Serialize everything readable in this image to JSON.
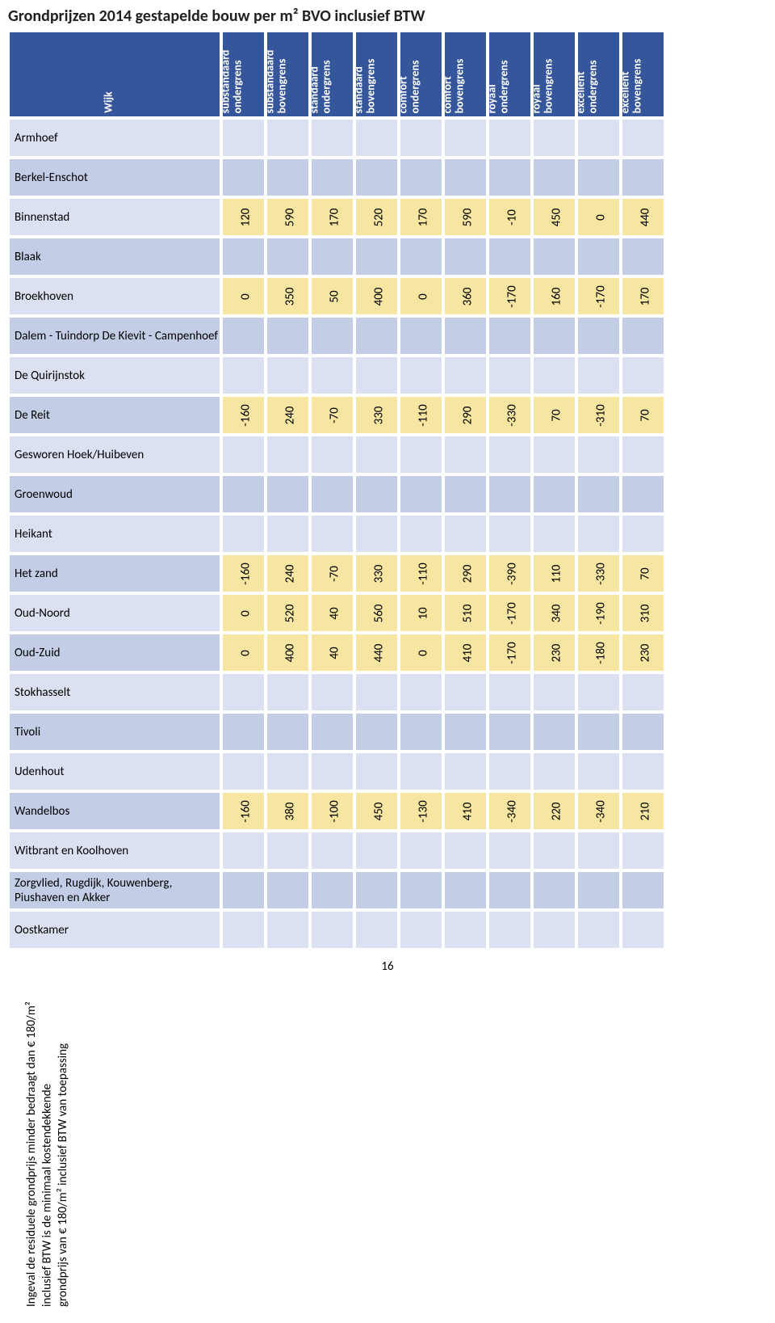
{
  "meta": {
    "title": "Grondprijzen 2014 gestapelde bouw per m² BVO inclusief BTW",
    "page_number": "16",
    "footnote_line1": "Ingeval de residuele grondprijs minder bedraagt dan € 180/m² inclusief BTW is de minimaal kostendekkende",
    "footnote_line2": "grondprijs van € 180/m² inclusief BTW van toepassing"
  },
  "headers": {
    "wijk": "Wijk",
    "cols": [
      {
        "l1": "substandaard",
        "l2": "ondergrens"
      },
      {
        "l1": "substandaard",
        "l2": "bovengrens"
      },
      {
        "l1": "standaard",
        "l2": "ondergrens"
      },
      {
        "l1": "standaard",
        "l2": "bovengrens"
      },
      {
        "l1": "comfort",
        "l2": "ondergrens"
      },
      {
        "l1": "comfort",
        "l2": "bovengrens"
      },
      {
        "l1": "royaal",
        "l2": "ondergrens"
      },
      {
        "l1": "royaal",
        "l2": "bovengrens"
      },
      {
        "l1": "excellent",
        "l2": "ondergrens"
      },
      {
        "l1": "excellent",
        "l2": "bovengrens"
      }
    ]
  },
  "rows": [
    {
      "name": "Armhoef",
      "v": [
        "",
        "",
        "",
        "",
        "",
        "",
        "",
        "",
        "",
        ""
      ]
    },
    {
      "name": "Berkel-Enschot",
      "v": [
        "",
        "",
        "",
        "",
        "",
        "",
        "",
        "",
        "",
        ""
      ]
    },
    {
      "name": "Binnenstad",
      "v": [
        "120",
        "590",
        "170",
        "520",
        "170",
        "590",
        "-10",
        "450",
        "0",
        "440"
      ]
    },
    {
      "name": "Blaak",
      "v": [
        "",
        "",
        "",
        "",
        "",
        "",
        "",
        "",
        "",
        ""
      ]
    },
    {
      "name": "Broekhoven",
      "v": [
        "0",
        "350",
        "50",
        "400",
        "0",
        "360",
        "-170",
        "160",
        "-170",
        "170"
      ]
    },
    {
      "name": "Dalem - Tuindorp De Kievit - Campenhoef",
      "v": [
        "",
        "",
        "",
        "",
        "",
        "",
        "",
        "",
        "",
        ""
      ]
    },
    {
      "name": "De Quirijnstok",
      "v": [
        "",
        "",
        "",
        "",
        "",
        "",
        "",
        "",
        "",
        ""
      ]
    },
    {
      "name": "De Reit",
      "v": [
        "-160",
        "240",
        "-70",
        "330",
        "-110",
        "290",
        "-330",
        "70",
        "-310",
        "70"
      ]
    },
    {
      "name": "Gesworen Hoek/Huibeven",
      "v": [
        "",
        "",
        "",
        "",
        "",
        "",
        "",
        "",
        "",
        ""
      ]
    },
    {
      "name": "Groenwoud",
      "v": [
        "",
        "",
        "",
        "",
        "",
        "",
        "",
        "",
        "",
        ""
      ]
    },
    {
      "name": "Heikant",
      "v": [
        "",
        "",
        "",
        "",
        "",
        "",
        "",
        "",
        "",
        ""
      ]
    },
    {
      "name": "Het zand",
      "v": [
        "-160",
        "240",
        "-70",
        "330",
        "-110",
        "290",
        "-390",
        "110",
        "-330",
        "70"
      ]
    },
    {
      "name": "Oud-Noord",
      "v": [
        "0",
        "520",
        "40",
        "560",
        "10",
        "510",
        "-170",
        "340",
        "-190",
        "310"
      ]
    },
    {
      "name": "Oud-Zuid",
      "v": [
        "0",
        "400",
        "40",
        "440",
        "0",
        "410",
        "-170",
        "230",
        "-180",
        "230"
      ]
    },
    {
      "name": "Stokhasselt",
      "v": [
        "",
        "",
        "",
        "",
        "",
        "",
        "",
        "",
        "",
        ""
      ]
    },
    {
      "name": "Tivoli",
      "v": [
        "",
        "",
        "",
        "",
        "",
        "",
        "",
        "",
        "",
        ""
      ]
    },
    {
      "name": "Udenhout",
      "v": [
        "",
        "",
        "",
        "",
        "",
        "",
        "",
        "",
        "",
        ""
      ]
    },
    {
      "name": "Wandelbos",
      "v": [
        "-160",
        "380",
        "-100",
        "450",
        "-130",
        "410",
        "-340",
        "220",
        "-340",
        "210"
      ]
    },
    {
      "name": "Witbrant en Koolhoven",
      "v": [
        "",
        "",
        "",
        "",
        "",
        "",
        "",
        "",
        "",
        ""
      ]
    },
    {
      "name": "Zorgvlied, Rugdijk, Kouwenberg, Piushaven en Akker",
      "v": [
        "",
        "",
        "",
        "",
        "",
        "",
        "",
        "",
        "",
        ""
      ]
    },
    {
      "name": "Oostkamer",
      "v": [
        "",
        "",
        "",
        "",
        "",
        "",
        "",
        "",
        "",
        ""
      ]
    }
  ],
  "colors": {
    "header_bg": "#35569b",
    "row_even": "#c3cde6",
    "row_odd": "#dbe1f0",
    "filled": "#f6e6a2",
    "border": "#ffffff"
  }
}
